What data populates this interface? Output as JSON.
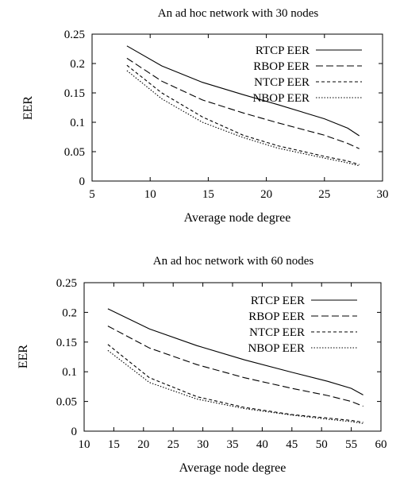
{
  "chart_data": [
    {
      "type": "line",
      "title": "An ad hoc network with 30 nodes",
      "xlabel": "Average node degree",
      "ylabel": "EER",
      "xlim": [
        5,
        30
      ],
      "ylim": [
        0,
        0.25
      ],
      "x_ticks": [
        "5",
        "10",
        "15",
        "20",
        "25",
        "30"
      ],
      "y_ticks": [
        "0",
        "0.05",
        "0.1",
        "0.15",
        "0.2",
        "0.25"
      ],
      "legend_position": "top-right",
      "grid": false,
      "series": [
        {
          "name": "RTCP EER",
          "style": "solid",
          "x": [
            8,
            11,
            14.5,
            18,
            21,
            25,
            27,
            28
          ],
          "y": [
            0.23,
            0.196,
            0.168,
            0.147,
            0.13,
            0.106,
            0.09,
            0.077
          ]
        },
        {
          "name": "RBOP EER",
          "style": "dashed",
          "x": [
            8,
            11,
            14.5,
            18,
            21,
            25,
            27,
            28
          ],
          "y": [
            0.209,
            0.17,
            0.138,
            0.116,
            0.099,
            0.078,
            0.064,
            0.055
          ]
        },
        {
          "name": "NTCP EER",
          "style": "shortdash",
          "x": [
            8,
            11,
            14.5,
            18,
            21,
            25,
            27,
            28
          ],
          "y": [
            0.197,
            0.15,
            0.109,
            0.078,
            0.06,
            0.042,
            0.034,
            0.028
          ]
        },
        {
          "name": "NBOP EER",
          "style": "dotted",
          "x": [
            8,
            11,
            14.5,
            18,
            21,
            25,
            27,
            28
          ],
          "y": [
            0.188,
            0.14,
            0.1,
            0.074,
            0.056,
            0.039,
            0.031,
            0.026
          ]
        }
      ]
    },
    {
      "type": "line",
      "title": "An ad hoc network with 60 nodes",
      "xlabel": "Average node degree",
      "ylabel": "EER",
      "xlim": [
        10,
        60
      ],
      "ylim": [
        0,
        0.25
      ],
      "x_ticks": [
        "10",
        "15",
        "20",
        "25",
        "30",
        "35",
        "40",
        "45",
        "50",
        "55",
        "60"
      ],
      "y_ticks": [
        "0",
        "0.05",
        "0.1",
        "0.15",
        "0.2",
        "0.25"
      ],
      "legend_position": "top-right",
      "grid": false,
      "series": [
        {
          "name": "RTCP EER",
          "style": "solid",
          "x": [
            14,
            21,
            29,
            37,
            45,
            51,
            55,
            57
          ],
          "y": [
            0.206,
            0.172,
            0.144,
            0.12,
            0.099,
            0.084,
            0.072,
            0.061
          ]
        },
        {
          "name": "RBOP EER",
          "style": "dashed",
          "x": [
            14,
            21,
            29,
            37,
            45,
            51,
            55,
            57
          ],
          "y": [
            0.177,
            0.14,
            0.112,
            0.09,
            0.072,
            0.06,
            0.05,
            0.042
          ]
        },
        {
          "name": "NTCP EER",
          "style": "shortdash",
          "x": [
            14,
            21,
            29,
            37,
            45,
            51,
            55,
            57
          ],
          "y": [
            0.146,
            0.09,
            0.058,
            0.04,
            0.028,
            0.022,
            0.018,
            0.015
          ]
        },
        {
          "name": "NBOP EER",
          "style": "dotted",
          "x": [
            14,
            21,
            29,
            37,
            45,
            51,
            55,
            57
          ],
          "y": [
            0.136,
            0.082,
            0.054,
            0.038,
            0.027,
            0.02,
            0.016,
            0.013
          ]
        }
      ]
    }
  ]
}
